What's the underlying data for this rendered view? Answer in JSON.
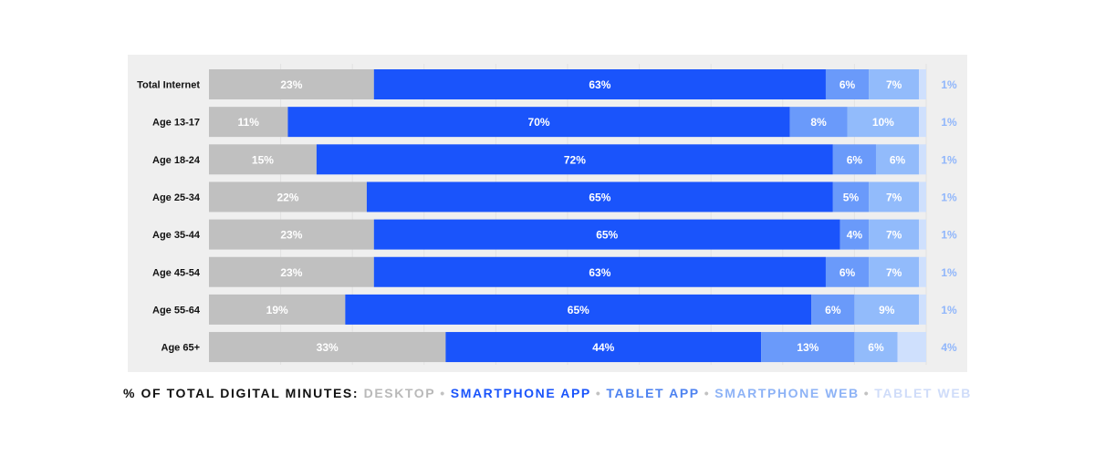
{
  "chart_data": {
    "type": "bar",
    "orientation": "horizontal",
    "stacked": true,
    "title": "",
    "xlabel": "",
    "ylabel": "",
    "xlim": [
      0,
      100
    ],
    "grid": true,
    "legend_position": "bottom",
    "legend_prefix": "% OF TOTAL DIGITAL MINUTES:",
    "categories": [
      "Total Internet",
      "Age 13-17",
      "Age 18-24",
      "Age 25-34",
      "Age 35-44",
      "Age 45-54",
      "Age 55-64",
      "Age 65+"
    ],
    "series": [
      {
        "name": "DESKTOP",
        "color": "#c0c0c0",
        "values": [
          23,
          11,
          15,
          22,
          23,
          23,
          19,
          33
        ]
      },
      {
        "name": "SMARTPHONE APP",
        "color": "#1a54fb",
        "values": [
          63,
          70,
          72,
          65,
          65,
          63,
          65,
          44
        ]
      },
      {
        "name": "TABLET APP",
        "color": "#6a9afa",
        "values": [
          6,
          8,
          6,
          5,
          4,
          6,
          6,
          13
        ]
      },
      {
        "name": "SMARTPHONE WEB",
        "color": "#92bbfb",
        "values": [
          7,
          10,
          6,
          7,
          7,
          7,
          9,
          6
        ]
      },
      {
        "name": "TABLET WEB",
        "color": "#cfe0fd",
        "values": [
          1,
          1,
          1,
          1,
          1,
          1,
          1,
          4
        ]
      }
    ],
    "legend_colors": [
      "#b9b9b9",
      "#1a54fb",
      "#4d82f0",
      "#8eb3f6",
      "#cfdcf9"
    ],
    "tail_label_color": "#90b6fb",
    "label_suffix": "%"
  }
}
